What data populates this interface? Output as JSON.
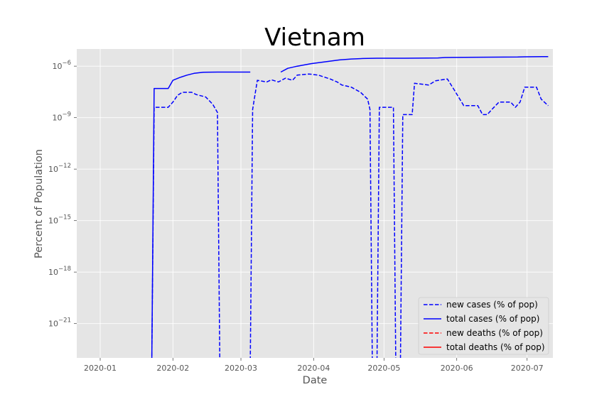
{
  "chart_data": {
    "type": "line",
    "title": "Vietnam",
    "xlabel": "Date",
    "ylabel": "Percent of Population",
    "yscale": "log",
    "grid": true,
    "legend_position": "lower right",
    "x_ticks": [
      "2020-01",
      "2020-02",
      "2020-03",
      "2020-04",
      "2020-05",
      "2020-06",
      "2020-07"
    ],
    "y_ticks": [
      {
        "value": 1e-21,
        "label": "10^-21"
      },
      {
        "value": 1e-18,
        "label": "10^-18"
      },
      {
        "value": 1e-15,
        "label": "10^-15"
      },
      {
        "value": 1e-12,
        "label": "10^-12"
      },
      {
        "value": 1e-09,
        "label": "10^-9"
      },
      {
        "value": 1e-06,
        "label": "10^-6"
      }
    ],
    "xlim": [
      "2019-12-22",
      "2020-07-12"
    ],
    "ylim": [
      1e-23,
      1e-05
    ],
    "series": [
      {
        "name": "new cases (% of pop)",
        "color": "#0000ff",
        "style": "dashed",
        "points": [
          [
            "2020-01-23",
            1e-30
          ],
          [
            "2020-01-24",
            4e-09
          ],
          [
            "2020-01-30",
            4e-09
          ],
          [
            "2020-02-01",
            8e-09
          ],
          [
            "2020-02-03",
            2e-08
          ],
          [
            "2020-02-05",
            3e-08
          ],
          [
            "2020-02-09",
            3e-08
          ],
          [
            "2020-02-11",
            2.2e-08
          ],
          [
            "2020-02-15",
            1.6e-08
          ],
          [
            "2020-02-18",
            6e-09
          ],
          [
            "2020-02-20",
            2e-09
          ],
          [
            "2020-02-21",
            1e-30
          ],
          [
            "2020-03-05",
            1e-30
          ],
          [
            "2020-03-06",
            3e-09
          ],
          [
            "2020-03-08",
            1.5e-07
          ],
          [
            "2020-03-12",
            1.2e-07
          ],
          [
            "2020-03-14",
            1.6e-07
          ],
          [
            "2020-03-17",
            1.2e-07
          ],
          [
            "2020-03-20",
            2e-07
          ],
          [
            "2020-03-23",
            1.5e-07
          ],
          [
            "2020-03-25",
            3e-07
          ],
          [
            "2020-03-30",
            3.5e-07
          ],
          [
            "2020-04-03",
            3e-07
          ],
          [
            "2020-04-08",
            1.8e-07
          ],
          [
            "2020-04-11",
            1.2e-07
          ],
          [
            "2020-04-13",
            8e-08
          ],
          [
            "2020-04-17",
            6e-08
          ],
          [
            "2020-04-21",
            3e-08
          ],
          [
            "2020-04-24",
            1.2e-08
          ],
          [
            "2020-04-25",
            3e-09
          ],
          [
            "2020-04-26",
            1e-30
          ],
          [
            "2020-04-28",
            1e-30
          ],
          [
            "2020-04-29",
            4e-09
          ],
          [
            "2020-05-05",
            4e-09
          ],
          [
            "2020-05-06",
            1e-30
          ],
          [
            "2020-05-08",
            1e-30
          ],
          [
            "2020-05-09",
            1.5e-09
          ],
          [
            "2020-05-13",
            1.5e-09
          ],
          [
            "2020-05-14",
            1e-07
          ],
          [
            "2020-05-20",
            8e-08
          ],
          [
            "2020-05-23",
            1.4e-07
          ],
          [
            "2020-05-28",
            1.8e-07
          ],
          [
            "2020-05-31",
            4e-08
          ],
          [
            "2020-06-04",
            5e-09
          ],
          [
            "2020-06-10",
            5e-09
          ],
          [
            "2020-06-12",
            1.5e-09
          ],
          [
            "2020-06-14",
            1.5e-09
          ],
          [
            "2020-06-16",
            3e-09
          ],
          [
            "2020-06-19",
            8e-09
          ],
          [
            "2020-06-24",
            8e-09
          ],
          [
            "2020-06-26",
            4e-09
          ],
          [
            "2020-06-28",
            8e-09
          ],
          [
            "2020-06-30",
            6e-08
          ],
          [
            "2020-07-05",
            6e-08
          ],
          [
            "2020-07-07",
            1.2e-08
          ],
          [
            "2020-07-10",
            5e-09
          ]
        ]
      },
      {
        "name": "total cases (% of pop)",
        "color": "#0000ff",
        "style": "solid",
        "points": [
          [
            "2020-01-23",
            1e-30
          ],
          [
            "2020-01-24",
            5e-08
          ],
          [
            "2020-01-30",
            5e-08
          ],
          [
            "2020-02-01",
            1.5e-07
          ],
          [
            "2020-02-04",
            2.2e-07
          ],
          [
            "2020-02-07",
            3e-07
          ],
          [
            "2020-02-10",
            3.8e-07
          ],
          [
            "2020-02-14",
            4.4e-07
          ],
          [
            "2020-02-20",
            4.5e-07
          ],
          [
            "2020-03-05",
            4.5e-07
          ],
          [
            "2020-03-05",
            null
          ],
          [
            "2020-03-18",
            null
          ],
          [
            "2020-03-18",
            4.5e-07
          ],
          [
            "2020-03-21",
            7.5e-07
          ],
          [
            "2020-03-25",
            1e-06
          ],
          [
            "2020-03-31",
            1.4e-06
          ],
          [
            "2020-04-06",
            1.8e-06
          ],
          [
            "2020-04-12",
            2.3e-06
          ],
          [
            "2020-04-17",
            2.6e-06
          ],
          [
            "2020-04-22",
            2.8e-06
          ],
          [
            "2020-04-28",
            2.9e-06
          ],
          [
            "2020-05-10",
            2.9e-06
          ],
          [
            "2020-05-24",
            3e-06
          ],
          [
            "2020-05-27",
            3.2e-06
          ],
          [
            "2020-06-10",
            3.3e-06
          ],
          [
            "2020-06-27",
            3.4e-06
          ],
          [
            "2020-06-30",
            3.5e-06
          ],
          [
            "2020-07-10",
            3.6e-06
          ]
        ]
      },
      {
        "name": "new deaths (% of pop)",
        "color": "#ff0000",
        "style": "dashed",
        "points": []
      },
      {
        "name": "total deaths (% of pop)",
        "color": "#ff0000",
        "style": "solid",
        "points": []
      }
    ]
  }
}
